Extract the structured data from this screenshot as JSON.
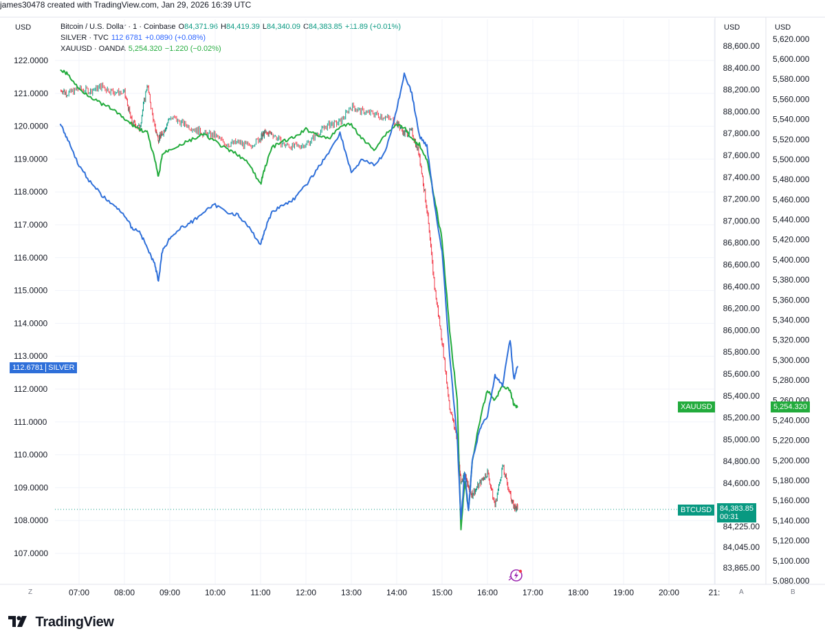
{
  "header": {
    "text": "james30478 created with TradingView.com, Jan 29, 2026 16:39 UTC"
  },
  "legend": {
    "btc": {
      "name": "Bitcoin / U.S. Dollar · 1 · Coinbase",
      "o_label": "O",
      "o": "84,371.96",
      "h_label": "H",
      "h": "84,419.39",
      "l_label": "L",
      "l": "84,340.09",
      "c_label": "C",
      "c": "84,383.85",
      "chg": "+11.89 (+0.01%)"
    },
    "silver": {
      "name": "SILVER · TVC",
      "val": "112.6781",
      "chg": "+0.0890 (+0.08%)"
    },
    "gold": {
      "name": "XAUUSD · OANDA",
      "val": "5,254.320",
      "chg": "−1.220 (−0.02%)"
    }
  },
  "axes": {
    "left_currency": "USD",
    "mid_currency": "USD",
    "right_currency": "USD",
    "left_letter": "Z",
    "mid_letter": "A",
    "right_letter": "B"
  },
  "tags": {
    "silver_value": "112.6781",
    "silver_name": "SILVER",
    "gold_name": "XAUUSD",
    "gold_value": "5,254.320",
    "btc_name": "BTCUSD",
    "btc_value": "84,383.85",
    "btc_timer": "00:31"
  },
  "footer": {
    "brand": "TradingView",
    "logo_icon": "tradingview-logo-icon"
  },
  "colors": {
    "silver": "#2e6fd9",
    "gold": "#22ab3c",
    "btc_up": "#089981",
    "btc_down": "#f23645",
    "grid": "#f0f3fa",
    "btc_tag": "#089981"
  },
  "chart_data": {
    "type": "line",
    "title": "",
    "x_ticks": [
      "07:00",
      "08:00",
      "09:00",
      "10:00",
      "11:00",
      "12:00",
      "13:00",
      "14:00",
      "15:00",
      "16:00",
      "17:00",
      "18:00",
      "19:00",
      "20:00",
      "21:"
    ],
    "y_left": {
      "label": "USD",
      "ticks": [
        "122.0000",
        "121.0000",
        "120.0000",
        "119.0000",
        "118.0000",
        "117.0000",
        "116.0000",
        "115.0000",
        "114.0000",
        "113.0000",
        "112.0000",
        "111.0000",
        "110.0000",
        "109.0000",
        "108.0000",
        "107.0000"
      ],
      "range": [
        106.5,
        122.7
      ]
    },
    "y_mid": {
      "label": "USD",
      "ticks": [
        "88,600.00",
        "88,400.00",
        "88,200.00",
        "88,000.00",
        "87,800.00",
        "87,600.00",
        "87,400.00",
        "87,200.00",
        "87,000.00",
        "86,800.00",
        "86,600.00",
        "86,400.00",
        "86,200.00",
        "86,000.00",
        "85,800.00",
        "85,600.00",
        "85,400.00",
        "85,200.00",
        "85,000.00",
        "84,800.00",
        "84,600.00",
        "84,225.00",
        "84,045.00",
        "83,865.00"
      ]
    },
    "y_right": {
      "label": "USD",
      "ticks": [
        "5,620.000",
        "5,600.000",
        "5,580.000",
        "5,560.000",
        "5,540.000",
        "5,520.000",
        "5,500.000",
        "5,480.000",
        "5,460.000",
        "5,440.000",
        "5,420.000",
        "5,400.000",
        "5,380.000",
        "5,360.000",
        "5,340.000",
        "5,320.000",
        "5,300.000",
        "5,280.000",
        "5,260.000",
        "5,240.000",
        "5,220.000",
        "5,200.000",
        "5,180.000",
        "5,160.000",
        "5,140.000",
        "5,120.000",
        "5,100.000",
        "5,080.000"
      ]
    },
    "series": [
      {
        "name": "SILVER · TVC",
        "axis": "left",
        "x": [
          "06:35",
          "06:45",
          "07:00",
          "07:15",
          "07:30",
          "07:45",
          "08:00",
          "08:10",
          "08:20",
          "08:30",
          "08:40",
          "08:45",
          "08:50",
          "09:00",
          "09:15",
          "09:30",
          "09:45",
          "10:00",
          "10:15",
          "10:30",
          "10:45",
          "11:00",
          "11:05",
          "11:15",
          "11:30",
          "11:45",
          "12:00",
          "12:15",
          "12:30",
          "12:45",
          "13:00",
          "13:15",
          "13:30",
          "13:45",
          "14:00",
          "14:10",
          "14:20",
          "14:30",
          "14:40",
          "14:50",
          "15:00",
          "15:10",
          "15:20",
          "15:25",
          "15:30",
          "15:35",
          "15:40",
          "15:50",
          "16:00",
          "16:10",
          "16:20",
          "16:30",
          "16:35",
          "16:40"
        ],
        "values": [
          120.1,
          119.6,
          118.8,
          118.3,
          117.9,
          117.6,
          117.3,
          116.9,
          116.8,
          116.3,
          115.8,
          115.3,
          116.2,
          116.6,
          116.9,
          117.1,
          117.4,
          117.6,
          117.4,
          117.3,
          116.9,
          116.4,
          116.8,
          117.4,
          117.6,
          117.8,
          118.2,
          118.7,
          119.2,
          119.8,
          118.6,
          119.0,
          118.8,
          119.2,
          120.5,
          121.6,
          121.0,
          119.7,
          119.4,
          117.6,
          116.2,
          113.0,
          110.5,
          108.0,
          109.5,
          108.3,
          109.8,
          110.8,
          111.2,
          112.4,
          112.1,
          113.5,
          112.3,
          112.7
        ]
      },
      {
        "name": "XAUUSD · OANDA",
        "axis": "right",
        "x": [
          "06:35",
          "06:45",
          "07:00",
          "07:15",
          "07:30",
          "07:45",
          "08:00",
          "08:10",
          "08:20",
          "08:30",
          "08:40",
          "08:45",
          "08:50",
          "09:00",
          "09:15",
          "09:30",
          "09:45",
          "10:00",
          "10:15",
          "10:30",
          "10:45",
          "11:00",
          "11:05",
          "11:15",
          "11:30",
          "11:45",
          "12:00",
          "12:15",
          "12:30",
          "12:45",
          "13:00",
          "13:15",
          "13:30",
          "13:45",
          "14:00",
          "14:10",
          "14:20",
          "14:30",
          "14:40",
          "14:50",
          "15:00",
          "15:10",
          "15:20",
          "15:25",
          "15:30",
          "15:35",
          "15:40",
          "15:50",
          "16:00",
          "16:10",
          "16:20",
          "16:30",
          "16:35",
          "16:40"
        ],
        "values": [
          5590,
          5585,
          5570,
          5563,
          5555,
          5550,
          5540,
          5535,
          5530,
          5527,
          5500,
          5482,
          5505,
          5510,
          5515,
          5520,
          5525,
          5518,
          5510,
          5505,
          5495,
          5475,
          5490,
          5512,
          5518,
          5522,
          5530,
          5525,
          5520,
          5533,
          5535,
          5520,
          5510,
          5525,
          5535,
          5532,
          5520,
          5515,
          5500,
          5460,
          5420,
          5330,
          5260,
          5130,
          5180,
          5150,
          5200,
          5240,
          5270,
          5260,
          5275,
          5270,
          5255,
          5254
        ]
      },
      {
        "name": "Bitcoin / U.S. Dollar · 1 · Coinbase",
        "axis": "mid",
        "x": [
          "06:35",
          "06:45",
          "07:00",
          "07:15",
          "07:30",
          "07:45",
          "08:00",
          "08:10",
          "08:20",
          "08:30",
          "08:40",
          "08:45",
          "08:50",
          "09:00",
          "09:15",
          "09:30",
          "09:45",
          "10:00",
          "10:15",
          "10:30",
          "10:45",
          "11:00",
          "11:05",
          "11:15",
          "11:30",
          "11:45",
          "12:00",
          "12:15",
          "12:30",
          "12:45",
          "13:00",
          "13:15",
          "13:30",
          "13:45",
          "14:00",
          "14:10",
          "14:20",
          "14:30",
          "14:40",
          "14:50",
          "15:00",
          "15:10",
          "15:20",
          "15:25",
          "15:30",
          "15:35",
          "15:40",
          "15:50",
          "16:00",
          "16:10",
          "16:20",
          "16:30",
          "16:35",
          "16:40"
        ],
        "values": [
          88200,
          88170,
          88210,
          88190,
          88230,
          88180,
          88170,
          87900,
          87850,
          88250,
          87860,
          87750,
          87800,
          87950,
          87900,
          87850,
          87800,
          87780,
          87700,
          87720,
          87680,
          87760,
          87800,
          87800,
          87700,
          87680,
          87700,
          87800,
          87880,
          87900,
          88050,
          88000,
          87980,
          87950,
          87900,
          87800,
          87820,
          87600,
          87100,
          86400,
          85900,
          85300,
          85000,
          84600,
          84700,
          84550,
          84500,
          84600,
          84700,
          84400,
          84750,
          84500,
          84380,
          84384
        ]
      }
    ]
  }
}
